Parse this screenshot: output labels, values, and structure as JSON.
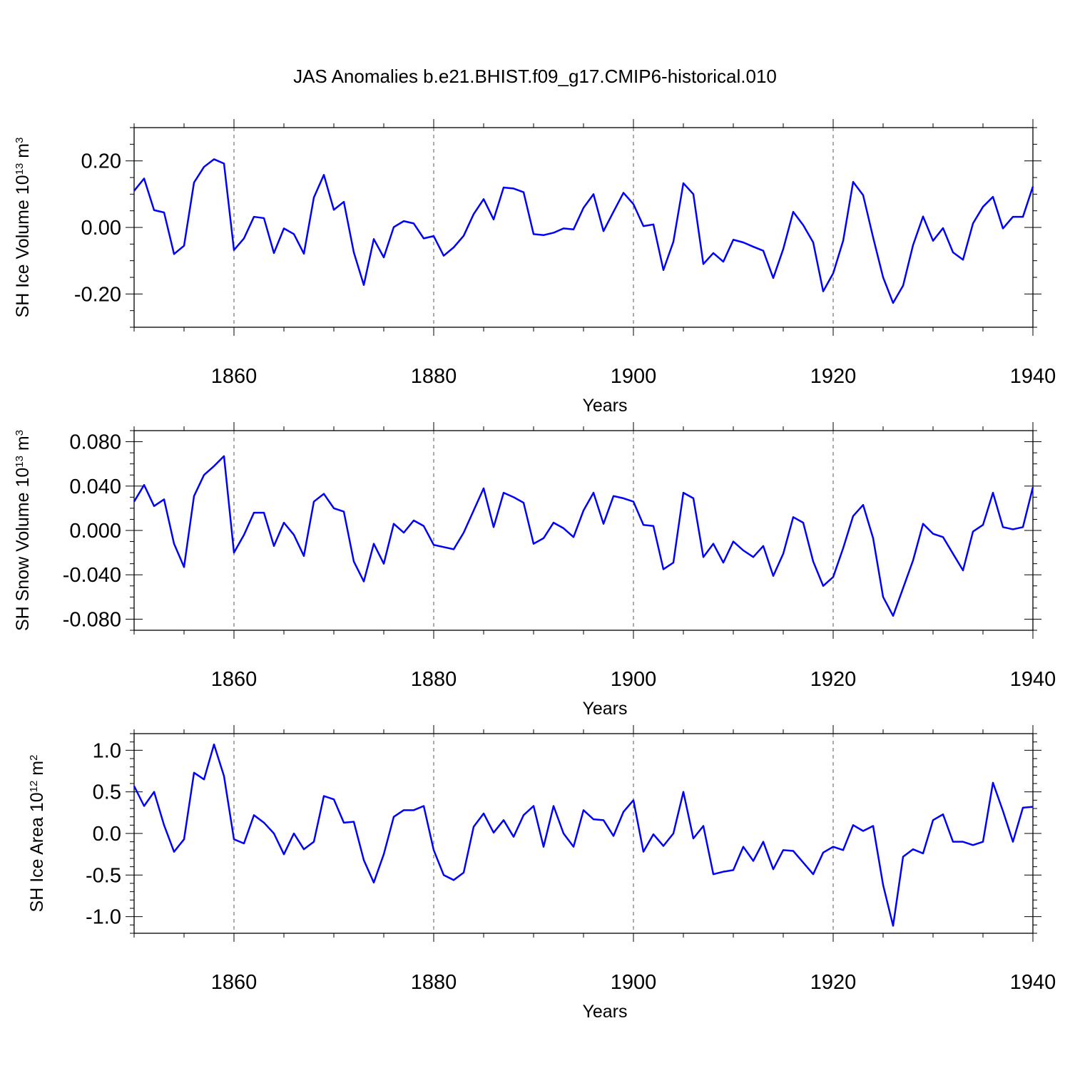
{
  "title": "JAS Anomalies b.e21.BHIST.f09_g17.CMIP6-historical.010",
  "colors": {
    "line": "#0000ff",
    "frame": "#000000",
    "gridline": "#555555"
  },
  "chart_data": [
    {
      "type": "line",
      "ylabel": "SH Ice Volume",
      "yunit_base": "10",
      "yunit_exp": "13",
      "yunit_unit": "m",
      "yunit_unit_exp": "3",
      "xlabel": "Years",
      "xlim": [
        1850,
        1940
      ],
      "ylim": [
        -0.3,
        0.3
      ],
      "yticks": [
        -0.2,
        0.0,
        0.2
      ],
      "ytick_labels": [
        "-0.20",
        "0.00",
        "0.20"
      ],
      "yminor_step": 0.05,
      "xticks": [
        1860,
        1880,
        1900,
        1920,
        1940
      ],
      "xtick_labels": [
        "1860",
        "1880",
        "1900",
        "1920",
        "1940"
      ],
      "xminor_step": 5,
      "xgrid": [
        1860,
        1880,
        1900,
        1920
      ],
      "x_start": 1850,
      "values": [
        0.11,
        0.147,
        0.052,
        0.045,
        -0.08,
        -0.055,
        0.135,
        0.182,
        0.205,
        0.192,
        -0.068,
        -0.033,
        0.032,
        0.028,
        -0.077,
        -0.003,
        -0.02,
        -0.079,
        0.09,
        0.158,
        0.053,
        0.077,
        -0.075,
        -0.173,
        -0.035,
        -0.09,
        0.001,
        0.019,
        0.012,
        -0.033,
        -0.026,
        -0.085,
        -0.06,
        -0.025,
        0.04,
        0.085,
        0.024,
        0.12,
        0.117,
        0.106,
        -0.02,
        -0.023,
        -0.016,
        -0.003,
        -0.006,
        0.059,
        0.1,
        -0.011,
        0.047,
        0.104,
        0.07,
        0.004,
        0.009,
        -0.128,
        -0.043,
        0.133,
        0.1,
        -0.11,
        -0.077,
        -0.103,
        -0.037,
        -0.045,
        -0.058,
        -0.07,
        -0.152,
        -0.065,
        0.047,
        0.007,
        -0.045,
        -0.192,
        -0.138,
        -0.04,
        0.137,
        0.097,
        -0.03,
        -0.15,
        -0.227,
        -0.175,
        -0.053,
        0.033,
        -0.04,
        -0.002,
        -0.075,
        -0.097,
        0.012,
        0.062,
        0.092,
        -0.003,
        0.032,
        0.032,
        0.123
      ]
    },
    {
      "type": "line",
      "ylabel": "SH Snow Volume",
      "yunit_base": "10",
      "yunit_exp": "13",
      "yunit_unit": "m",
      "yunit_unit_exp": "3",
      "xlabel": "Years",
      "xlim": [
        1850,
        1940
      ],
      "ylim": [
        -0.09,
        0.09
      ],
      "yticks": [
        -0.08,
        -0.04,
        0.0,
        0.04,
        0.08
      ],
      "ytick_labels": [
        "-0.080",
        "-0.040",
        "0.000",
        "0.040",
        "0.080"
      ],
      "yminor_step": 0.01,
      "xticks": [
        1860,
        1880,
        1900,
        1920,
        1940
      ],
      "xtick_labels": [
        "1860",
        "1880",
        "1900",
        "1920",
        "1940"
      ],
      "xminor_step": 5,
      "xgrid": [
        1860,
        1880,
        1900,
        1920
      ],
      "x_start": 1850,
      "values": [
        0.026,
        0.041,
        0.022,
        0.028,
        -0.012,
        -0.033,
        0.031,
        0.05,
        0.058,
        0.067,
        -0.02,
        -0.004,
        0.016,
        0.016,
        -0.014,
        0.007,
        -0.004,
        -0.023,
        0.026,
        0.033,
        0.02,
        0.017,
        -0.028,
        -0.046,
        -0.012,
        -0.03,
        0.006,
        -0.002,
        0.009,
        0.004,
        -0.013,
        -0.015,
        -0.017,
        -0.002,
        0.018,
        0.038,
        0.003,
        0.034,
        0.03,
        0.025,
        -0.012,
        -0.007,
        0.007,
        0.002,
        -0.006,
        0.018,
        0.034,
        0.006,
        0.031,
        0.029,
        0.026,
        0.005,
        0.004,
        -0.035,
        -0.029,
        0.034,
        0.029,
        -0.024,
        -0.012,
        -0.029,
        -0.01,
        -0.018,
        -0.024,
        -0.014,
        -0.041,
        -0.021,
        0.012,
        0.007,
        -0.028,
        -0.05,
        -0.042,
        -0.016,
        0.013,
        0.023,
        -0.007,
        -0.06,
        -0.077,
        -0.052,
        -0.027,
        0.006,
        -0.003,
        -0.006,
        -0.021,
        -0.036,
        -0.001,
        0.005,
        0.034,
        0.003,
        0.001,
        0.003,
        0.039
      ]
    },
    {
      "type": "line",
      "ylabel": "SH Ice Area",
      "yunit_base": "10",
      "yunit_exp": "12",
      "yunit_unit": "m",
      "yunit_unit_exp": "2",
      "xlabel": "Years",
      "xlim": [
        1850,
        1940
      ],
      "ylim": [
        -1.2,
        1.2
      ],
      "yticks": [
        -1.0,
        -0.5,
        0.0,
        0.5,
        1.0
      ],
      "ytick_labels": [
        "-1.0",
        "-0.5",
        "0.0",
        "0.5",
        "1.0"
      ],
      "yminor_step": 0.1,
      "xticks": [
        1860,
        1880,
        1900,
        1920,
        1940
      ],
      "xtick_labels": [
        "1860",
        "1880",
        "1900",
        "1920",
        "1940"
      ],
      "xminor_step": 5,
      "xgrid": [
        1860,
        1880,
        1900,
        1920
      ],
      "x_start": 1850,
      "values": [
        0.57,
        0.33,
        0.5,
        0.1,
        -0.22,
        -0.07,
        0.73,
        0.65,
        1.07,
        0.69,
        -0.07,
        -0.12,
        0.22,
        0.13,
        0.0,
        -0.25,
        0.0,
        -0.19,
        -0.1,
        0.45,
        0.41,
        0.13,
        0.14,
        -0.32,
        -0.59,
        -0.25,
        0.2,
        0.28,
        0.28,
        0.33,
        -0.2,
        -0.5,
        -0.56,
        -0.47,
        0.08,
        0.24,
        0.01,
        0.16,
        -0.04,
        0.22,
        0.33,
        -0.16,
        0.33,
        0.0,
        -0.16,
        0.28,
        0.17,
        0.16,
        -0.03,
        0.26,
        0.4,
        -0.22,
        -0.01,
        -0.15,
        0.0,
        0.5,
        -0.06,
        0.09,
        -0.49,
        -0.46,
        -0.44,
        -0.16,
        -0.33,
        -0.1,
        -0.43,
        -0.2,
        -0.21,
        -0.35,
        -0.49,
        -0.23,
        -0.16,
        -0.2,
        0.1,
        0.03,
        0.09,
        -0.62,
        -1.11,
        -0.28,
        -0.19,
        -0.24,
        0.16,
        0.23,
        -0.1,
        -0.1,
        -0.14,
        -0.1,
        0.61,
        0.27,
        -0.1,
        0.31,
        0.32
      ]
    }
  ]
}
